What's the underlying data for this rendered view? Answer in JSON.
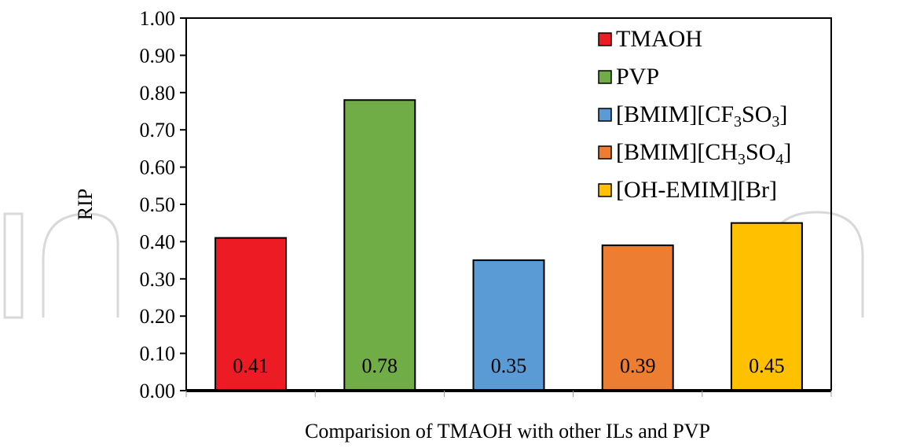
{
  "chart_data": {
    "type": "bar",
    "categories": [
      "TMAOH",
      "PVP",
      "[BMIM][CF3SO3]",
      "[BMIM][CH3SO4]",
      "[OH-EMIM][Br]"
    ],
    "values": [
      0.41,
      0.78,
      0.35,
      0.39,
      0.45
    ],
    "data_labels": [
      "0.41",
      "0.78",
      "0.35",
      "0.39",
      "0.45"
    ],
    "colors": [
      "#ed1c24",
      "#70ad47",
      "#5b9bd5",
      "#ed7d31",
      "#ffc000"
    ],
    "legend_entries": [
      {
        "base": "TMAOH",
        "parts": []
      },
      {
        "base": "PVP",
        "parts": []
      },
      {
        "base": "",
        "parts": [
          [
            "[BMIM][CF",
            "n"
          ],
          [
            "3",
            "sub"
          ],
          [
            "SO",
            "n"
          ],
          [
            "3",
            "sub"
          ],
          [
            "]",
            "n"
          ]
        ]
      },
      {
        "base": "",
        "parts": [
          [
            "[BMIM][CH",
            "n"
          ],
          [
            "3",
            "sub"
          ],
          [
            "SO",
            "n"
          ],
          [
            "4",
            "sub"
          ],
          [
            "]",
            "n"
          ]
        ]
      },
      {
        "base": "[OH-EMIM][Br]",
        "parts": []
      }
    ],
    "legend_position": "top-right",
    "ylabel": "RIP",
    "xlabel": "Comparision of TMAOH with other ILs and PVP",
    "ylim": [
      0,
      1.0
    ],
    "yticks": [
      "0.00",
      "0.10",
      "0.20",
      "0.30",
      "0.40",
      "0.50",
      "0.60",
      "0.70",
      "0.80",
      "0.90",
      "1.00"
    ],
    "grid": false
  }
}
